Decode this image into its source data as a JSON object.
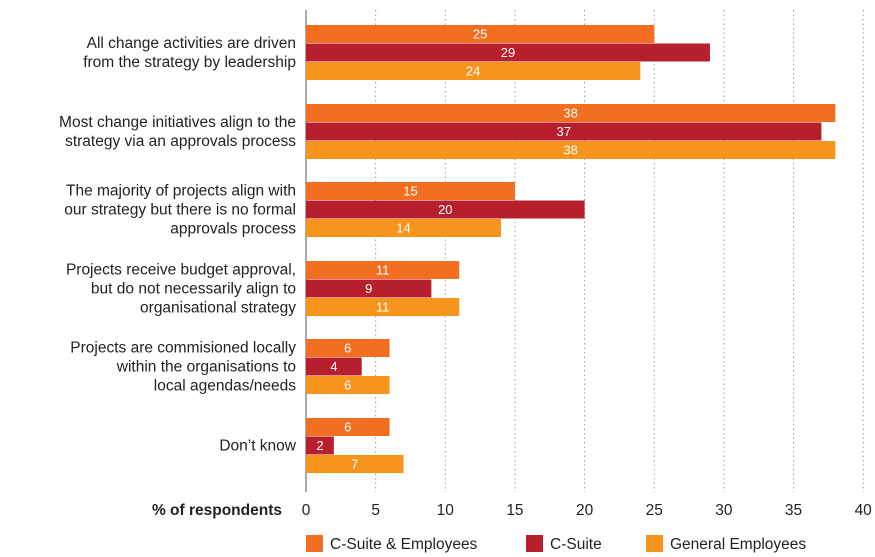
{
  "chart_data": {
    "type": "bar",
    "orientation": "horizontal",
    "categories": [
      [
        "All change activities are driven",
        "from the strategy by leadership"
      ],
      [
        "Most change initiatives align to the",
        "strategy via an approvals process"
      ],
      [
        "The majority of projects align with",
        "our strategy but there is no formal",
        "approvals process"
      ],
      [
        "Projects receive budget approval,",
        "but do not necessarily align to",
        "organisational strategy"
      ],
      [
        "Projects are commisioned locally",
        "within the organisations to",
        "local agendas/needs"
      ],
      [
        "Don’t know"
      ]
    ],
    "series": [
      {
        "name": "C-Suite & Employees",
        "color": "#f26f21",
        "values": [
          25,
          38,
          15,
          11,
          6,
          6
        ]
      },
      {
        "name": "C-Suite",
        "color": "#b81f2d",
        "values": [
          29,
          37,
          20,
          9,
          4,
          2
        ]
      },
      {
        "name": "General Employees",
        "color": "#f7941d",
        "values": [
          24,
          38,
          14,
          11,
          6,
          7
        ]
      }
    ],
    "xlabel": "% of respondents",
    "xlim": [
      0,
      40
    ],
    "xticks": [
      0,
      5,
      10,
      15,
      20,
      25,
      30,
      35,
      40
    ],
    "grid": "vertical dotted",
    "legend_position": "bottom"
  }
}
